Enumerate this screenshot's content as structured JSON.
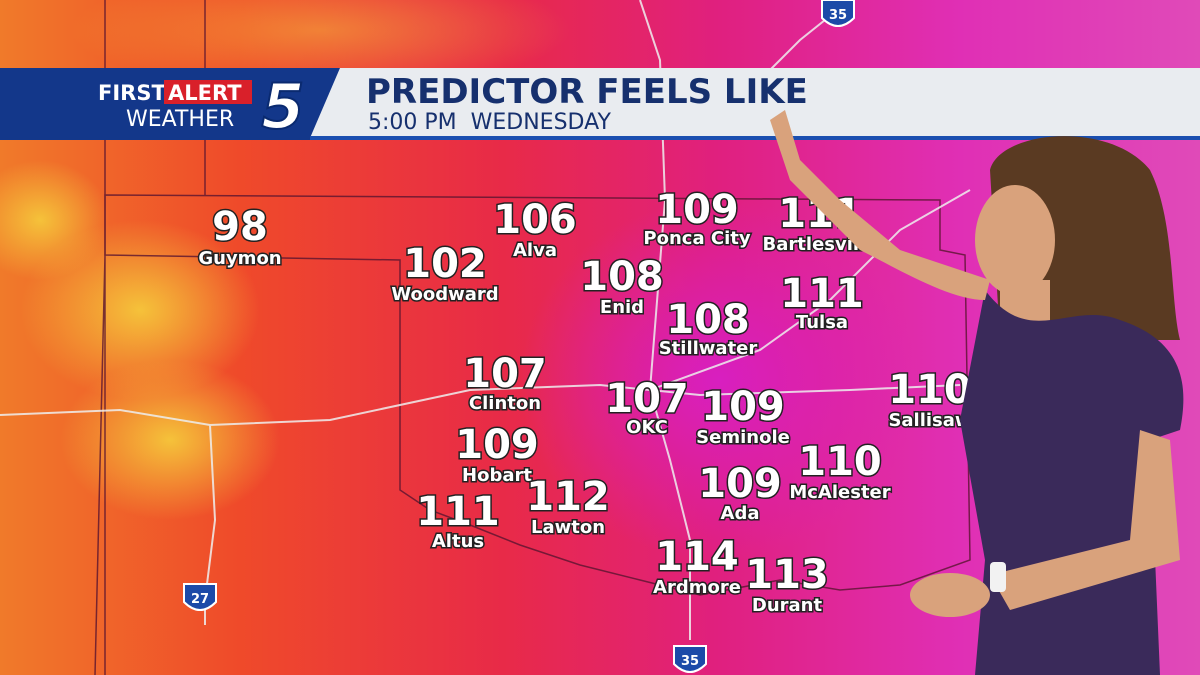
{
  "header": {
    "brand_first": "FIRST",
    "brand_alert": "ALERT",
    "brand_weather": "WEATHER",
    "channel": "5",
    "title": "PREDICTOR FEELS LIKE",
    "subtitle": "5:00 PM  WEDNESDAY"
  },
  "cities": [
    {
      "name": "Guymon",
      "value": 98
    },
    {
      "name": "Alva",
      "value": 106
    },
    {
      "name": "Ponca City",
      "value": 109
    },
    {
      "name": "Bartlesville",
      "value": 111
    },
    {
      "name": "Woodward",
      "value": 102
    },
    {
      "name": "Enid",
      "value": 108
    },
    {
      "name": "Tulsa",
      "value": 111
    },
    {
      "name": "Stillwater",
      "value": 108
    },
    {
      "name": "Clinton",
      "value": 107
    },
    {
      "name": "OKC",
      "value": 107
    },
    {
      "name": "Seminole",
      "value": 109
    },
    {
      "name": "Sallisaw",
      "value": 110
    },
    {
      "name": "Hobart",
      "value": 109
    },
    {
      "name": "McAlester",
      "value": 110
    },
    {
      "name": "Ada",
      "value": 109
    },
    {
      "name": "Lawton",
      "value": 112
    },
    {
      "name": "Altus",
      "value": 111
    },
    {
      "name": "Ardmore",
      "value": 114
    },
    {
      "name": "Durant",
      "value": 113
    }
  ],
  "highways": [
    "35",
    "27",
    "35"
  ]
}
